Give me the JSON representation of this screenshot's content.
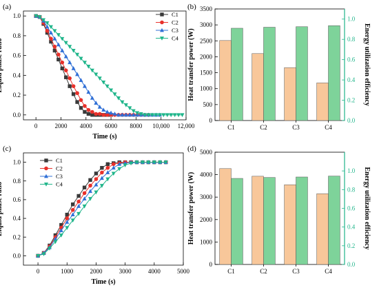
{
  "colors": {
    "C1": "#3a3a3a",
    "C2": "#e8302a",
    "C3": "#2f6fd6",
    "C4": "#1fb58a",
    "bar_power": "#f8c79a",
    "bar_eff": "#7ed39a",
    "right_axis": "#1fb58a"
  },
  "chart_data": [
    {
      "panel_label": "(a)",
      "type": "line",
      "xlabel": "Time (s)",
      "ylabel": "Liquid phase ratio",
      "xlim": [
        -1000,
        12000
      ],
      "ylim": [
        -0.05,
        1.05
      ],
      "xticks": [
        0,
        2000,
        4000,
        6000,
        8000,
        10000,
        12000
      ],
      "xtick_labels": [
        "0",
        "2000",
        "4000",
        "6000",
        "8000",
        "10,000",
        "12,000"
      ],
      "yticks": [
        0.0,
        0.2,
        0.4,
        0.6,
        0.8,
        1.0
      ],
      "ytick_labels": [
        "0.0",
        "0.2",
        "0.4",
        "0.6",
        "0.8",
        "1.0"
      ],
      "legend": "top-right",
      "series": [
        {
          "name": "C1",
          "marker": "square",
          "x": [
            0,
            300,
            600,
            900,
            1200,
            1500,
            1800,
            2100,
            2400,
            2700,
            3000,
            3300,
            3600,
            3900,
            4200,
            4500,
            4800,
            5100,
            5400,
            5700,
            6000
          ],
          "y": [
            1.0,
            0.99,
            0.92,
            0.83,
            0.74,
            0.65,
            0.56,
            0.47,
            0.38,
            0.29,
            0.21,
            0.13,
            0.07,
            0.03,
            0.01,
            0.0,
            0.0,
            0.0,
            0.0,
            0.0,
            0.0
          ]
        },
        {
          "name": "C2",
          "marker": "circle",
          "x": [
            0,
            300,
            600,
            900,
            1200,
            1500,
            1800,
            2100,
            2400,
            2700,
            3000,
            3300,
            3600,
            3900,
            4200,
            4500,
            4800,
            5100,
            5400,
            5700,
            6000,
            6300,
            6600,
            6900,
            7200,
            7500,
            7800,
            8100,
            8400,
            8700,
            9000
          ],
          "y": [
            1.0,
            0.99,
            0.93,
            0.85,
            0.77,
            0.69,
            0.61,
            0.53,
            0.45,
            0.37,
            0.29,
            0.22,
            0.15,
            0.09,
            0.05,
            0.03,
            0.01,
            0.01,
            0.0,
            0.0,
            0.0,
            0.0,
            0.0,
            0.0,
            0.0,
            0.0,
            0.0,
            0.0,
            0.0,
            0.0,
            0.0
          ]
        },
        {
          "name": "C3",
          "marker": "triangle-up",
          "x": [
            0,
            300,
            600,
            900,
            1200,
            1500,
            1800,
            2100,
            2400,
            2700,
            3000,
            3300,
            3600,
            3900,
            4200,
            4500,
            4800,
            5100,
            5400,
            5700,
            6000,
            6300,
            6600,
            6900,
            7200,
            7500,
            7800,
            8100,
            8400,
            8700,
            9000,
            9300,
            9600,
            9900
          ],
          "y": [
            1.0,
            0.99,
            0.95,
            0.89,
            0.83,
            0.77,
            0.71,
            0.65,
            0.59,
            0.53,
            0.47,
            0.41,
            0.35,
            0.29,
            0.23,
            0.17,
            0.12,
            0.08,
            0.05,
            0.03,
            0.02,
            0.01,
            0.0,
            0.0,
            0.0,
            0.0,
            0.0,
            0.0,
            0.0,
            0.0,
            0.0,
            0.0,
            0.0,
            0.0
          ]
        },
        {
          "name": "C4",
          "marker": "triangle-down",
          "x": [
            0,
            300,
            600,
            900,
            1200,
            1500,
            1800,
            2100,
            2400,
            2700,
            3000,
            3300,
            3600,
            3900,
            4200,
            4500,
            4800,
            5100,
            5400,
            5700,
            6000,
            6300,
            6600,
            6900,
            7200,
            7500,
            7800,
            8100,
            8400,
            8700,
            9000,
            9300,
            9600,
            9900,
            10200,
            10500,
            10800,
            11100,
            11400,
            11700
          ],
          "y": [
            1.0,
            0.99,
            0.96,
            0.93,
            0.89,
            0.85,
            0.81,
            0.77,
            0.73,
            0.69,
            0.65,
            0.61,
            0.57,
            0.53,
            0.49,
            0.45,
            0.41,
            0.37,
            0.33,
            0.29,
            0.25,
            0.21,
            0.17,
            0.13,
            0.1,
            0.07,
            0.04,
            0.02,
            0.01,
            0.0,
            0.0,
            0.0,
            0.0,
            0.0,
            0.0,
            0.0,
            0.0,
            0.0,
            0.0,
            0.0
          ]
        }
      ]
    },
    {
      "panel_label": "(b)",
      "type": "bar",
      "categories": [
        "C1",
        "C2",
        "C3",
        "C4"
      ],
      "ylabel": "Heat transfer power (W)",
      "y2label": "Energy utilization efficiency",
      "ylim": [
        0,
        3500
      ],
      "yticks": [
        0,
        500,
        1000,
        1500,
        2000,
        2500,
        3000,
        3500
      ],
      "y2lim": [
        0,
        1.1
      ],
      "y2ticks": [
        0.0,
        0.2,
        0.4,
        0.6,
        0.8,
        1.0
      ],
      "y2tick_labels": [
        "0.0",
        "0.2",
        "0.4",
        "0.6",
        "0.8",
        "1.0"
      ],
      "series": [
        {
          "axis": "left",
          "values": [
            2510,
            2100,
            1660,
            1180
          ]
        },
        {
          "axis": "right",
          "values": [
            0.91,
            0.92,
            0.925,
            0.935
          ]
        }
      ]
    },
    {
      "panel_label": "(c)",
      "type": "line",
      "xlabel": "Time (s)",
      "ylabel": "Liquid phase ratio",
      "xlim": [
        -500,
        5000
      ],
      "ylim": [
        -0.1,
        1.1
      ],
      "xticks": [
        0,
        1000,
        2000,
        3000,
        4000,
        5000
      ],
      "xtick_labels": [
        "0",
        "1000",
        "2000",
        "3000",
        "4000",
        "5000"
      ],
      "yticks": [
        0.0,
        0.2,
        0.4,
        0.6,
        0.8,
        1.0
      ],
      "ytick_labels": [
        "0.0",
        "0.2",
        "0.4",
        "0.6",
        "0.8",
        "1.0"
      ],
      "legend": "top-left",
      "series": [
        {
          "name": "C1",
          "marker": "square",
          "x": [
            0,
            200,
            400,
            600,
            800,
            1000,
            1200,
            1400,
            1600,
            1800,
            2000,
            2200,
            2400,
            2600,
            2800,
            3000,
            3200,
            3400,
            3600,
            3800,
            4000,
            4200,
            4400
          ],
          "y": [
            0.0,
            0.03,
            0.11,
            0.22,
            0.33,
            0.44,
            0.55,
            0.64,
            0.73,
            0.81,
            0.88,
            0.94,
            0.98,
            0.99,
            1.0,
            1.0,
            1.0,
            1.0,
            1.0,
            1.0,
            1.0,
            1.0,
            1.0
          ]
        },
        {
          "name": "C2",
          "marker": "circle",
          "x": [
            0,
            200,
            400,
            600,
            800,
            1000,
            1200,
            1400,
            1600,
            1800,
            2000,
            2200,
            2400,
            2600,
            2800,
            3000,
            3200,
            3400,
            3600,
            3800,
            4000,
            4200,
            4400
          ],
          "y": [
            0.0,
            0.03,
            0.1,
            0.2,
            0.3,
            0.4,
            0.49,
            0.58,
            0.67,
            0.75,
            0.82,
            0.89,
            0.94,
            0.98,
            0.99,
            1.0,
            1.0,
            1.0,
            1.0,
            1.0,
            1.0,
            1.0,
            1.0
          ]
        },
        {
          "name": "C3",
          "marker": "triangle-up",
          "x": [
            0,
            200,
            400,
            600,
            800,
            1000,
            1200,
            1400,
            1600,
            1800,
            2000,
            2200,
            2400,
            2600,
            2800,
            3000,
            3200,
            3400,
            3600,
            3800,
            4000,
            4200,
            4400
          ],
          "y": [
            0.0,
            0.03,
            0.09,
            0.18,
            0.27,
            0.36,
            0.44,
            0.53,
            0.61,
            0.69,
            0.76,
            0.83,
            0.89,
            0.94,
            0.98,
            0.99,
            1.0,
            1.0,
            1.0,
            1.0,
            1.0,
            1.0,
            1.0
          ]
        },
        {
          "name": "C4",
          "marker": "triangle-down",
          "x": [
            0,
            200,
            400,
            600,
            800,
            1000,
            1200,
            1400,
            1600,
            1800,
            2000,
            2200,
            2400,
            2600,
            2800,
            3000,
            3200,
            3400,
            3600,
            3800,
            4000,
            4200,
            4400
          ],
          "y": [
            0.0,
            0.02,
            0.08,
            0.15,
            0.22,
            0.3,
            0.38,
            0.45,
            0.53,
            0.61,
            0.68,
            0.75,
            0.82,
            0.88,
            0.93,
            0.97,
            0.99,
            1.0,
            1.0,
            1.0,
            1.0,
            1.0,
            1.0
          ]
        }
      ]
    },
    {
      "panel_label": "(d)",
      "type": "bar",
      "categories": [
        "C1",
        "C2",
        "C3",
        "C4"
      ],
      "ylabel": "Heat transfer power (W)",
      "y2label": "Energy utilization efficiency",
      "ylim": [
        0,
        5000
      ],
      "yticks": [
        0,
        1000,
        2000,
        3000,
        4000,
        5000
      ],
      "y2lim": [
        0,
        1.2
      ],
      "y2ticks": [
        0.0,
        0.2,
        0.4,
        0.6,
        0.8,
        1.0
      ],
      "y2tick_labels": [
        "0.0",
        "0.2",
        "0.4",
        "0.6",
        "0.8",
        "1.0"
      ],
      "series": [
        {
          "axis": "left",
          "values": [
            4270,
            3930,
            3550,
            3150
          ]
        },
        {
          "axis": "right",
          "values": [
            0.92,
            0.93,
            0.935,
            0.945
          ]
        }
      ]
    }
  ]
}
